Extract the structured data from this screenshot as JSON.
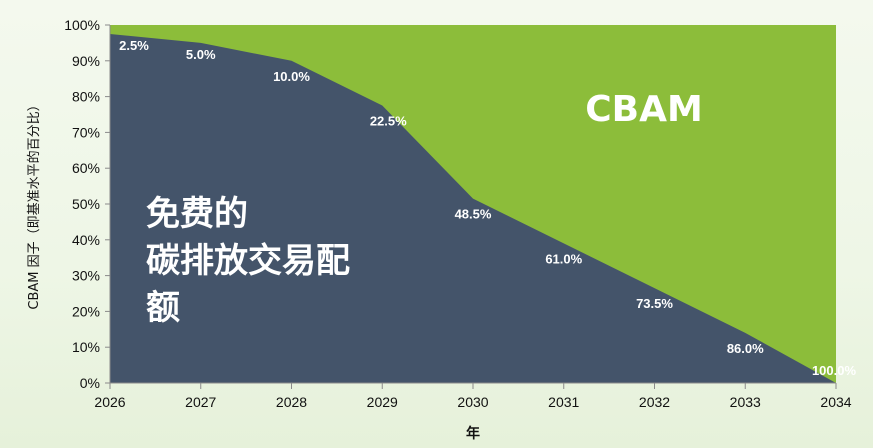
{
  "chart_data": {
    "type": "area",
    "x": [
      "2026",
      "2027",
      "2028",
      "2029",
      "2030",
      "2031",
      "2032",
      "2033",
      "2034"
    ],
    "series": [
      {
        "name": "免费的碳排放交易配额",
        "values": [
          97.5,
          95.0,
          90.0,
          77.5,
          51.5,
          39.0,
          26.5,
          14.0,
          0.0
        ],
        "color": "#44546a"
      },
      {
        "name": "CBAM",
        "values": [
          2.5,
          5.0,
          10.0,
          22.5,
          48.5,
          61.0,
          73.5,
          86.0,
          100.0
        ],
        "color": "#8cbd3a"
      }
    ],
    "data_labels": [
      "2.5%",
      "5.0%",
      "10.0%",
      "22.5%",
      "48.5%",
      "61.0%",
      "73.5%",
      "86.0%",
      "100.0%"
    ],
    "y_ticks": [
      "0%",
      "10%",
      "20%",
      "30%",
      "40%",
      "50%",
      "60%",
      "70%",
      "80%",
      "90%",
      "100%"
    ],
    "ylim": [
      0,
      100
    ],
    "xlabel": "年",
    "ylabel": "CBAM 因子（即基准水平的百分比）",
    "region_labels": {
      "cbam": "CBAM",
      "free_allowance_lines": [
        "免费的",
        "碳排放交易配",
        "额"
      ]
    },
    "stacked": true,
    "grid": false,
    "legend": "none"
  }
}
